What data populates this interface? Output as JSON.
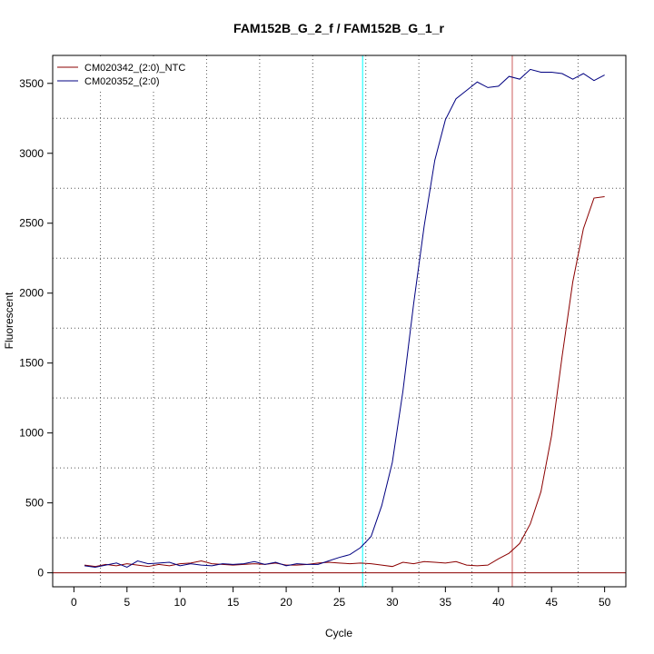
{
  "chart_data": {
    "type": "line",
    "title": "FAM152B_G_2_f / FAM152B_G_1_r",
    "xlabel": "Cycle",
    "ylabel": "Fluorescent",
    "xlim": [
      -2,
      52
    ],
    "ylim": [
      -100,
      3700
    ],
    "x_ticks": [
      0,
      5,
      10,
      15,
      20,
      25,
      30,
      35,
      40,
      45,
      50
    ],
    "y_ticks": [
      0,
      500,
      1000,
      1500,
      2000,
      2500,
      3000,
      3500
    ],
    "grid": "dotted, at intermediate positions",
    "legend_position": "top-left",
    "vertical_lines": [
      {
        "x": 27.2,
        "color": "#00ffff"
      },
      {
        "x": 41.3,
        "color": "#cd5c5c"
      }
    ],
    "horizontal_lines": [
      {
        "y": 0,
        "color": "#8b0000"
      }
    ],
    "x": [
      1,
      2,
      3,
      4,
      5,
      6,
      7,
      8,
      9,
      10,
      11,
      12,
      13,
      14,
      15,
      16,
      17,
      18,
      19,
      20,
      21,
      22,
      23,
      24,
      25,
      26,
      27,
      28,
      29,
      30,
      31,
      32,
      33,
      34,
      35,
      36,
      37,
      38,
      39,
      40,
      41,
      42,
      43,
      44,
      45,
      46,
      47,
      48,
      49,
      50
    ],
    "series": [
      {
        "name": "CM020342_(2:0)_NTC",
        "color": "#8b0000",
        "values": [
          55,
          45,
          60,
          50,
          65,
          55,
          45,
          60,
          50,
          65,
          70,
          85,
          65,
          60,
          55,
          60,
          65,
          60,
          70,
          55,
          55,
          60,
          70,
          75,
          70,
          65,
          70,
          65,
          55,
          45,
          75,
          65,
          80,
          75,
          70,
          80,
          55,
          50,
          55,
          100,
          140,
          210,
          350,
          580,
          980,
          1550,
          2080,
          2460,
          2680,
          2690
        ]
      },
      {
        "name": "CM020352_(2:0)",
        "color": "#000080",
        "values": [
          50,
          40,
          55,
          70,
          40,
          85,
          65,
          70,
          75,
          50,
          65,
          55,
          50,
          65,
          60,
          65,
          80,
          60,
          75,
          50,
          65,
          60,
          60,
          85,
          110,
          130,
          180,
          260,
          480,
          790,
          1300,
          1920,
          2480,
          2950,
          3240,
          3390,
          3450,
          3510,
          3470,
          3480,
          3550,
          3530,
          3600,
          3580,
          3580,
          3570,
          3530,
          3570,
          3520,
          3560
        ]
      }
    ]
  }
}
